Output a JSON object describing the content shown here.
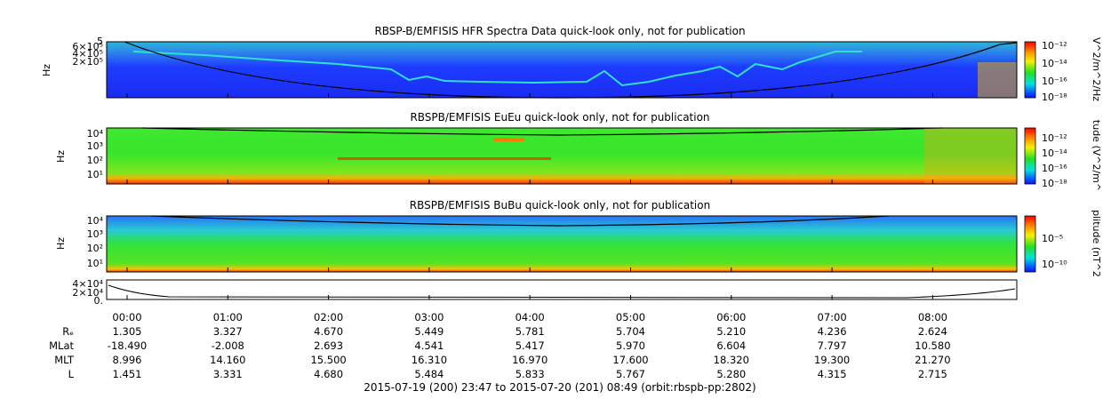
{
  "chart_data": [
    {
      "type": "heatmap",
      "title": "RBSP-B/EMFISIS  HFR Spectra Data quick-look only, not for publication",
      "ylabel": "Hz",
      "y_ticks": [
        "5",
        "6×10⁵",
        "4×10⁵",
        "2×10⁵"
      ],
      "colorbar_label": "V^2/m^2/Hz",
      "colorbar_ticks": [
        "10⁻¹²",
        "10⁻¹⁴",
        "10⁻¹⁶",
        "10⁻¹⁸"
      ]
    },
    {
      "type": "heatmap",
      "title": "RBSPB/EMFISIS  EuEu quick-look only, not for publication",
      "ylabel": "Hz",
      "y_ticks": [
        "10⁴",
        "10³",
        "10²",
        "10¹"
      ],
      "colorbar_label": "tude (V^2/m^",
      "colorbar_ticks": [
        "10⁻¹²",
        "10⁻¹⁴",
        "10⁻¹⁶",
        "10⁻¹⁸"
      ]
    },
    {
      "type": "heatmap",
      "title": "RBSPB/EMFISIS  BuBu quick-look only, not for publication",
      "ylabel": "Hz",
      "y_ticks": [
        "10⁴",
        "10³",
        "10²",
        "10¹"
      ],
      "colorbar_label": "plitude (nT^2",
      "colorbar_ticks": [
        "10⁻⁵",
        "10⁻¹⁰"
      ]
    },
    {
      "type": "line",
      "y_ticks": [
        "4×10⁴",
        "2×10⁴",
        "0."
      ]
    }
  ],
  "time_axis": {
    "labels": [
      "00:00",
      "01:00",
      "02:00",
      "03:00",
      "04:00",
      "05:00",
      "06:00",
      "07:00",
      "08:00"
    ]
  },
  "ephemeris": [
    {
      "label": "Rₑ",
      "values": [
        "1.305",
        "3.327",
        "4.670",
        "5.449",
        "5.781",
        "5.704",
        "5.210",
        "4.236",
        "2.624"
      ]
    },
    {
      "label": "MLat",
      "values": [
        "-18.490",
        "-2.008",
        "2.693",
        "4.541",
        "5.417",
        "5.970",
        "6.604",
        "7.797",
        "10.580"
      ]
    },
    {
      "label": "MLT",
      "values": [
        "8.996",
        "14.160",
        "15.500",
        "16.310",
        "16.970",
        "17.600",
        "18.320",
        "19.300",
        "21.270"
      ]
    },
    {
      "label": "L",
      "values": [
        "1.451",
        "3.331",
        "4.680",
        "5.484",
        "5.833",
        "5.767",
        "5.280",
        "4.315",
        "2.715"
      ]
    }
  ],
  "footer": "2015-07-19 (200) 23:47 to 2015-07-20 (201) 08:49 (orbit:rbspb-pp:2802)",
  "colors": {
    "spectrogram_background_p1": "#1f3cff",
    "spectrogram_background_p2": "#2ee82a",
    "spectrogram_background_p3": "#2ee82a"
  }
}
